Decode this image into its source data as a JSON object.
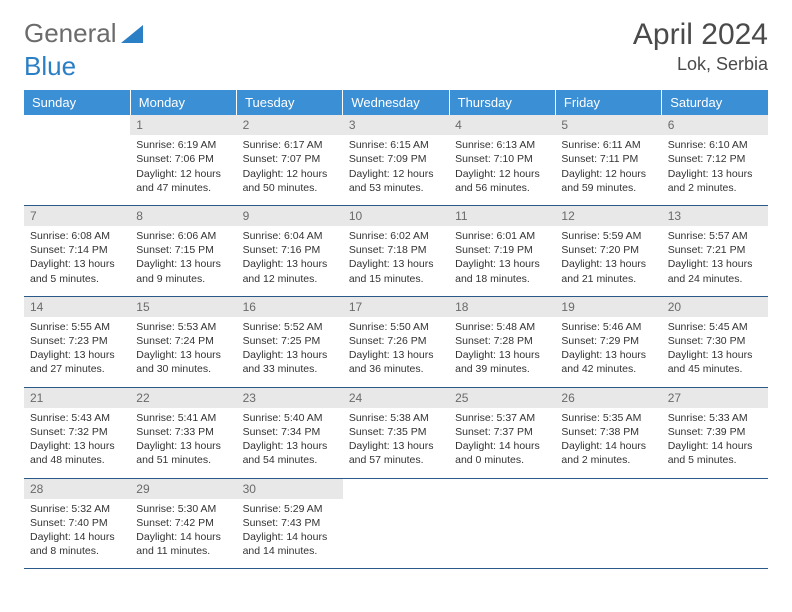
{
  "logo": {
    "part1": "General",
    "part2": "Blue"
  },
  "title": "April 2024",
  "location": "Lok, Serbia",
  "colors": {
    "header_bg": "#3b8fd4",
    "header_text": "#ffffff",
    "daynum_bg": "#e8e8e8",
    "daynum_text": "#6a6a6a",
    "row_border": "#2a5a8a",
    "logo_gray": "#6b6b6b",
    "logo_blue": "#2a7fc5"
  },
  "weekdays": [
    "Sunday",
    "Monday",
    "Tuesday",
    "Wednesday",
    "Thursday",
    "Friday",
    "Saturday"
  ],
  "label_sunrise": "Sunrise:",
  "label_sunset": "Sunset:",
  "label_daylight": "Daylight:",
  "weeks": [
    [
      null,
      {
        "n": "1",
        "sr": "6:19 AM",
        "ss": "7:06 PM",
        "dl": "12 hours and 47 minutes."
      },
      {
        "n": "2",
        "sr": "6:17 AM",
        "ss": "7:07 PM",
        "dl": "12 hours and 50 minutes."
      },
      {
        "n": "3",
        "sr": "6:15 AM",
        "ss": "7:09 PM",
        "dl": "12 hours and 53 minutes."
      },
      {
        "n": "4",
        "sr": "6:13 AM",
        "ss": "7:10 PM",
        "dl": "12 hours and 56 minutes."
      },
      {
        "n": "5",
        "sr": "6:11 AM",
        "ss": "7:11 PM",
        "dl": "12 hours and 59 minutes."
      },
      {
        "n": "6",
        "sr": "6:10 AM",
        "ss": "7:12 PM",
        "dl": "13 hours and 2 minutes."
      }
    ],
    [
      {
        "n": "7",
        "sr": "6:08 AM",
        "ss": "7:14 PM",
        "dl": "13 hours and 5 minutes."
      },
      {
        "n": "8",
        "sr": "6:06 AM",
        "ss": "7:15 PM",
        "dl": "13 hours and 9 minutes."
      },
      {
        "n": "9",
        "sr": "6:04 AM",
        "ss": "7:16 PM",
        "dl": "13 hours and 12 minutes."
      },
      {
        "n": "10",
        "sr": "6:02 AM",
        "ss": "7:18 PM",
        "dl": "13 hours and 15 minutes."
      },
      {
        "n": "11",
        "sr": "6:01 AM",
        "ss": "7:19 PM",
        "dl": "13 hours and 18 minutes."
      },
      {
        "n": "12",
        "sr": "5:59 AM",
        "ss": "7:20 PM",
        "dl": "13 hours and 21 minutes."
      },
      {
        "n": "13",
        "sr": "5:57 AM",
        "ss": "7:21 PM",
        "dl": "13 hours and 24 minutes."
      }
    ],
    [
      {
        "n": "14",
        "sr": "5:55 AM",
        "ss": "7:23 PM",
        "dl": "13 hours and 27 minutes."
      },
      {
        "n": "15",
        "sr": "5:53 AM",
        "ss": "7:24 PM",
        "dl": "13 hours and 30 minutes."
      },
      {
        "n": "16",
        "sr": "5:52 AM",
        "ss": "7:25 PM",
        "dl": "13 hours and 33 minutes."
      },
      {
        "n": "17",
        "sr": "5:50 AM",
        "ss": "7:26 PM",
        "dl": "13 hours and 36 minutes."
      },
      {
        "n": "18",
        "sr": "5:48 AM",
        "ss": "7:28 PM",
        "dl": "13 hours and 39 minutes."
      },
      {
        "n": "19",
        "sr": "5:46 AM",
        "ss": "7:29 PM",
        "dl": "13 hours and 42 minutes."
      },
      {
        "n": "20",
        "sr": "5:45 AM",
        "ss": "7:30 PM",
        "dl": "13 hours and 45 minutes."
      }
    ],
    [
      {
        "n": "21",
        "sr": "5:43 AM",
        "ss": "7:32 PM",
        "dl": "13 hours and 48 minutes."
      },
      {
        "n": "22",
        "sr": "5:41 AM",
        "ss": "7:33 PM",
        "dl": "13 hours and 51 minutes."
      },
      {
        "n": "23",
        "sr": "5:40 AM",
        "ss": "7:34 PM",
        "dl": "13 hours and 54 minutes."
      },
      {
        "n": "24",
        "sr": "5:38 AM",
        "ss": "7:35 PM",
        "dl": "13 hours and 57 minutes."
      },
      {
        "n": "25",
        "sr": "5:37 AM",
        "ss": "7:37 PM",
        "dl": "14 hours and 0 minutes."
      },
      {
        "n": "26",
        "sr": "5:35 AM",
        "ss": "7:38 PM",
        "dl": "14 hours and 2 minutes."
      },
      {
        "n": "27",
        "sr": "5:33 AM",
        "ss": "7:39 PM",
        "dl": "14 hours and 5 minutes."
      }
    ],
    [
      {
        "n": "28",
        "sr": "5:32 AM",
        "ss": "7:40 PM",
        "dl": "14 hours and 8 minutes."
      },
      {
        "n": "29",
        "sr": "5:30 AM",
        "ss": "7:42 PM",
        "dl": "14 hours and 11 minutes."
      },
      {
        "n": "30",
        "sr": "5:29 AM",
        "ss": "7:43 PM",
        "dl": "14 hours and 14 minutes."
      },
      null,
      null,
      null,
      null
    ]
  ]
}
